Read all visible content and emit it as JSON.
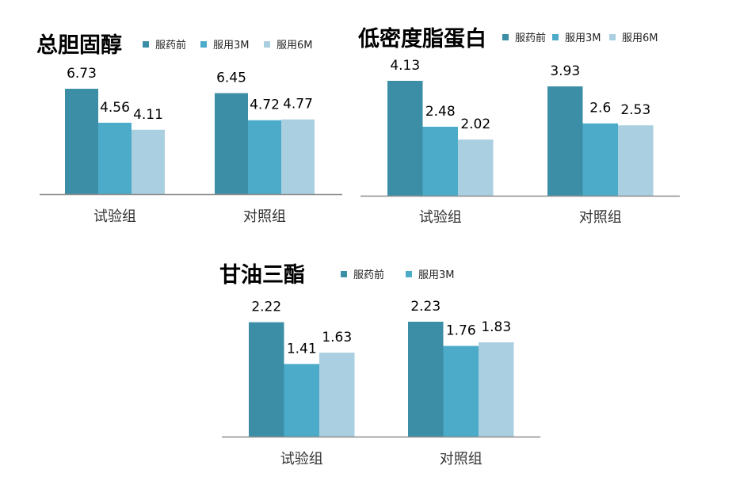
{
  "chart_data": [
    {
      "type": "bar",
      "title": "总胆固醇",
      "categories": [
        "试验组",
        "对照组"
      ],
      "series": [
        {
          "name": "服药前",
          "values": [
            6.73,
            6.45
          ]
        },
        {
          "name": "服用3M",
          "values": [
            4.56,
            4.72
          ]
        },
        {
          "name": "服用6M",
          "values": [
            4.11,
            4.77
          ]
        }
      ],
      "ylim": [
        0,
        6.73
      ],
      "legend": "top",
      "grid": false,
      "colors": [
        "#3c8ea6",
        "#4babc9",
        "#aacfe0"
      ]
    },
    {
      "type": "bar",
      "title": "低密度脂蛋白",
      "categories": [
        "试验组",
        "对照组"
      ],
      "series": [
        {
          "name": "服药前",
          "values": [
            4.13,
            3.93
          ]
        },
        {
          "name": "服用3M",
          "values": [
            2.48,
            2.6
          ]
        },
        {
          "name": "服用6M",
          "values": [
            2.02,
            2.53
          ]
        }
      ],
      "ylim": [
        0,
        4.13
      ],
      "legend": "top",
      "grid": false,
      "colors": [
        "#3c8ea6",
        "#4babc9",
        "#aacfe0"
      ]
    },
    {
      "type": "bar",
      "title": "甘油三酯",
      "categories": [
        "试验组",
        "对照组"
      ],
      "series": [
        {
          "name": "服药前",
          "values": [
            2.22,
            2.23
          ]
        },
        {
          "name": "服用3M",
          "values": [
            1.41,
            1.76
          ]
        },
        {
          "name": "",
          "values": [
            1.63,
            1.83
          ]
        }
      ],
      "ylim": [
        0,
        2.23
      ],
      "legend": "top",
      "grid": false,
      "colors": [
        "#3c8ea6",
        "#4babc9",
        "#aacfe0"
      ]
    }
  ]
}
